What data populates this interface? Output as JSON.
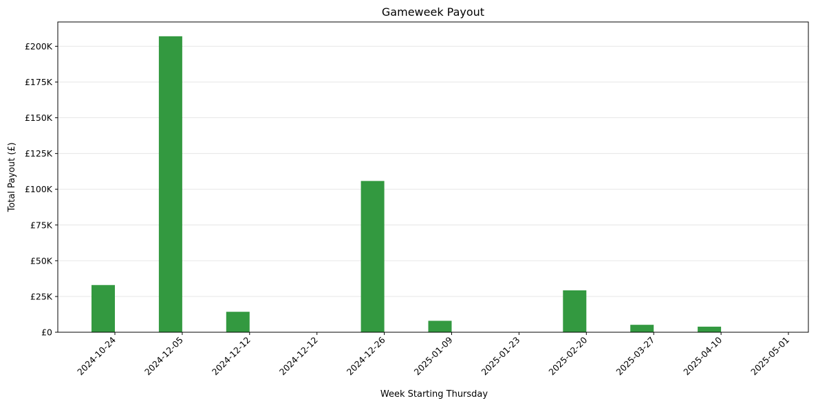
{
  "chart_data": {
    "type": "bar",
    "title": "Gameweek Payout",
    "xlabel": "Week Starting Thursday",
    "ylabel": "Total Payout (£)",
    "categories": [
      "2024-10-24",
      "2024-12-05",
      "2024-12-12",
      "2024-12-12",
      "2024-12-26",
      "2025-01-09",
      "2025-01-23",
      "2025-02-20",
      "2025-03-27",
      "2025-04-10",
      "2025-05-01"
    ],
    "values": [
      33000,
      207000,
      14300,
      0,
      105800,
      8000,
      0,
      29300,
      5200,
      3900,
      0
    ],
    "ylim": [
      0,
      217000
    ],
    "yticks": [
      0,
      25000,
      50000,
      75000,
      100000,
      125000,
      150000,
      175000,
      200000
    ],
    "ytick_labels": [
      "£0",
      "£25K",
      "£50K",
      "£75K",
      "£100K",
      "£125K",
      "£150K",
      "£175K",
      "£200K"
    ],
    "grid": "y",
    "bar_color": "#339940"
  }
}
